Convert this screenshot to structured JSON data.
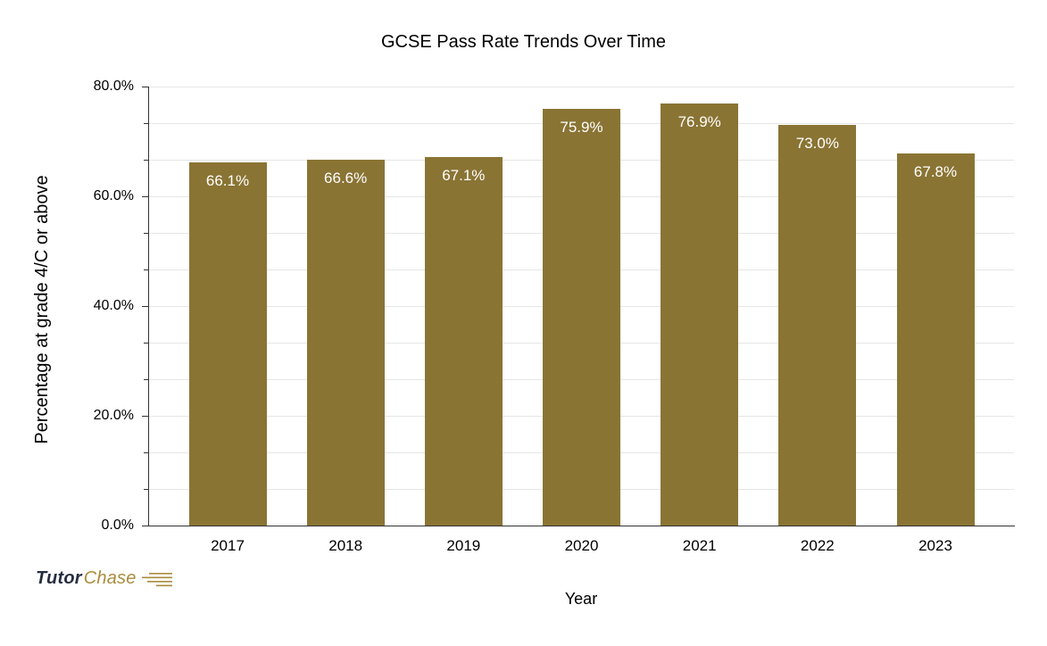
{
  "chart_data": {
    "type": "bar",
    "title": "GCSE Pass Rate Trends Over Time",
    "xlabel": "Year",
    "ylabel": "Percentage at grade 4/C or above",
    "categories": [
      "2017",
      "2018",
      "2019",
      "2020",
      "2021",
      "2022",
      "2023"
    ],
    "values": [
      66.1,
      66.6,
      67.1,
      75.9,
      76.9,
      73.0,
      67.8
    ],
    "value_labels": [
      "66.1%",
      "66.6%",
      "67.1%",
      "75.9%",
      "76.9%",
      "73.0%",
      "67.8%"
    ],
    "ylim": [
      0,
      80
    ],
    "y_major_step": 20,
    "y_minor_divisions": 3,
    "y_tick_labels": [
      "0.0%",
      "20.0%",
      "40.0%",
      "60.0%",
      "80.0%"
    ],
    "grid": true,
    "legend": "none",
    "bar_color": "#8A7434",
    "value_label_color": "#ffffff",
    "gridline_color": "#e6e6e6",
    "axis_color": "#333333",
    "text_color": "#000000"
  },
  "branding": {
    "logo_tutor": "Tutor",
    "logo_chase": "Chase",
    "tutor_color": "#252e3f",
    "chase_color": "#ab8b3c"
  }
}
